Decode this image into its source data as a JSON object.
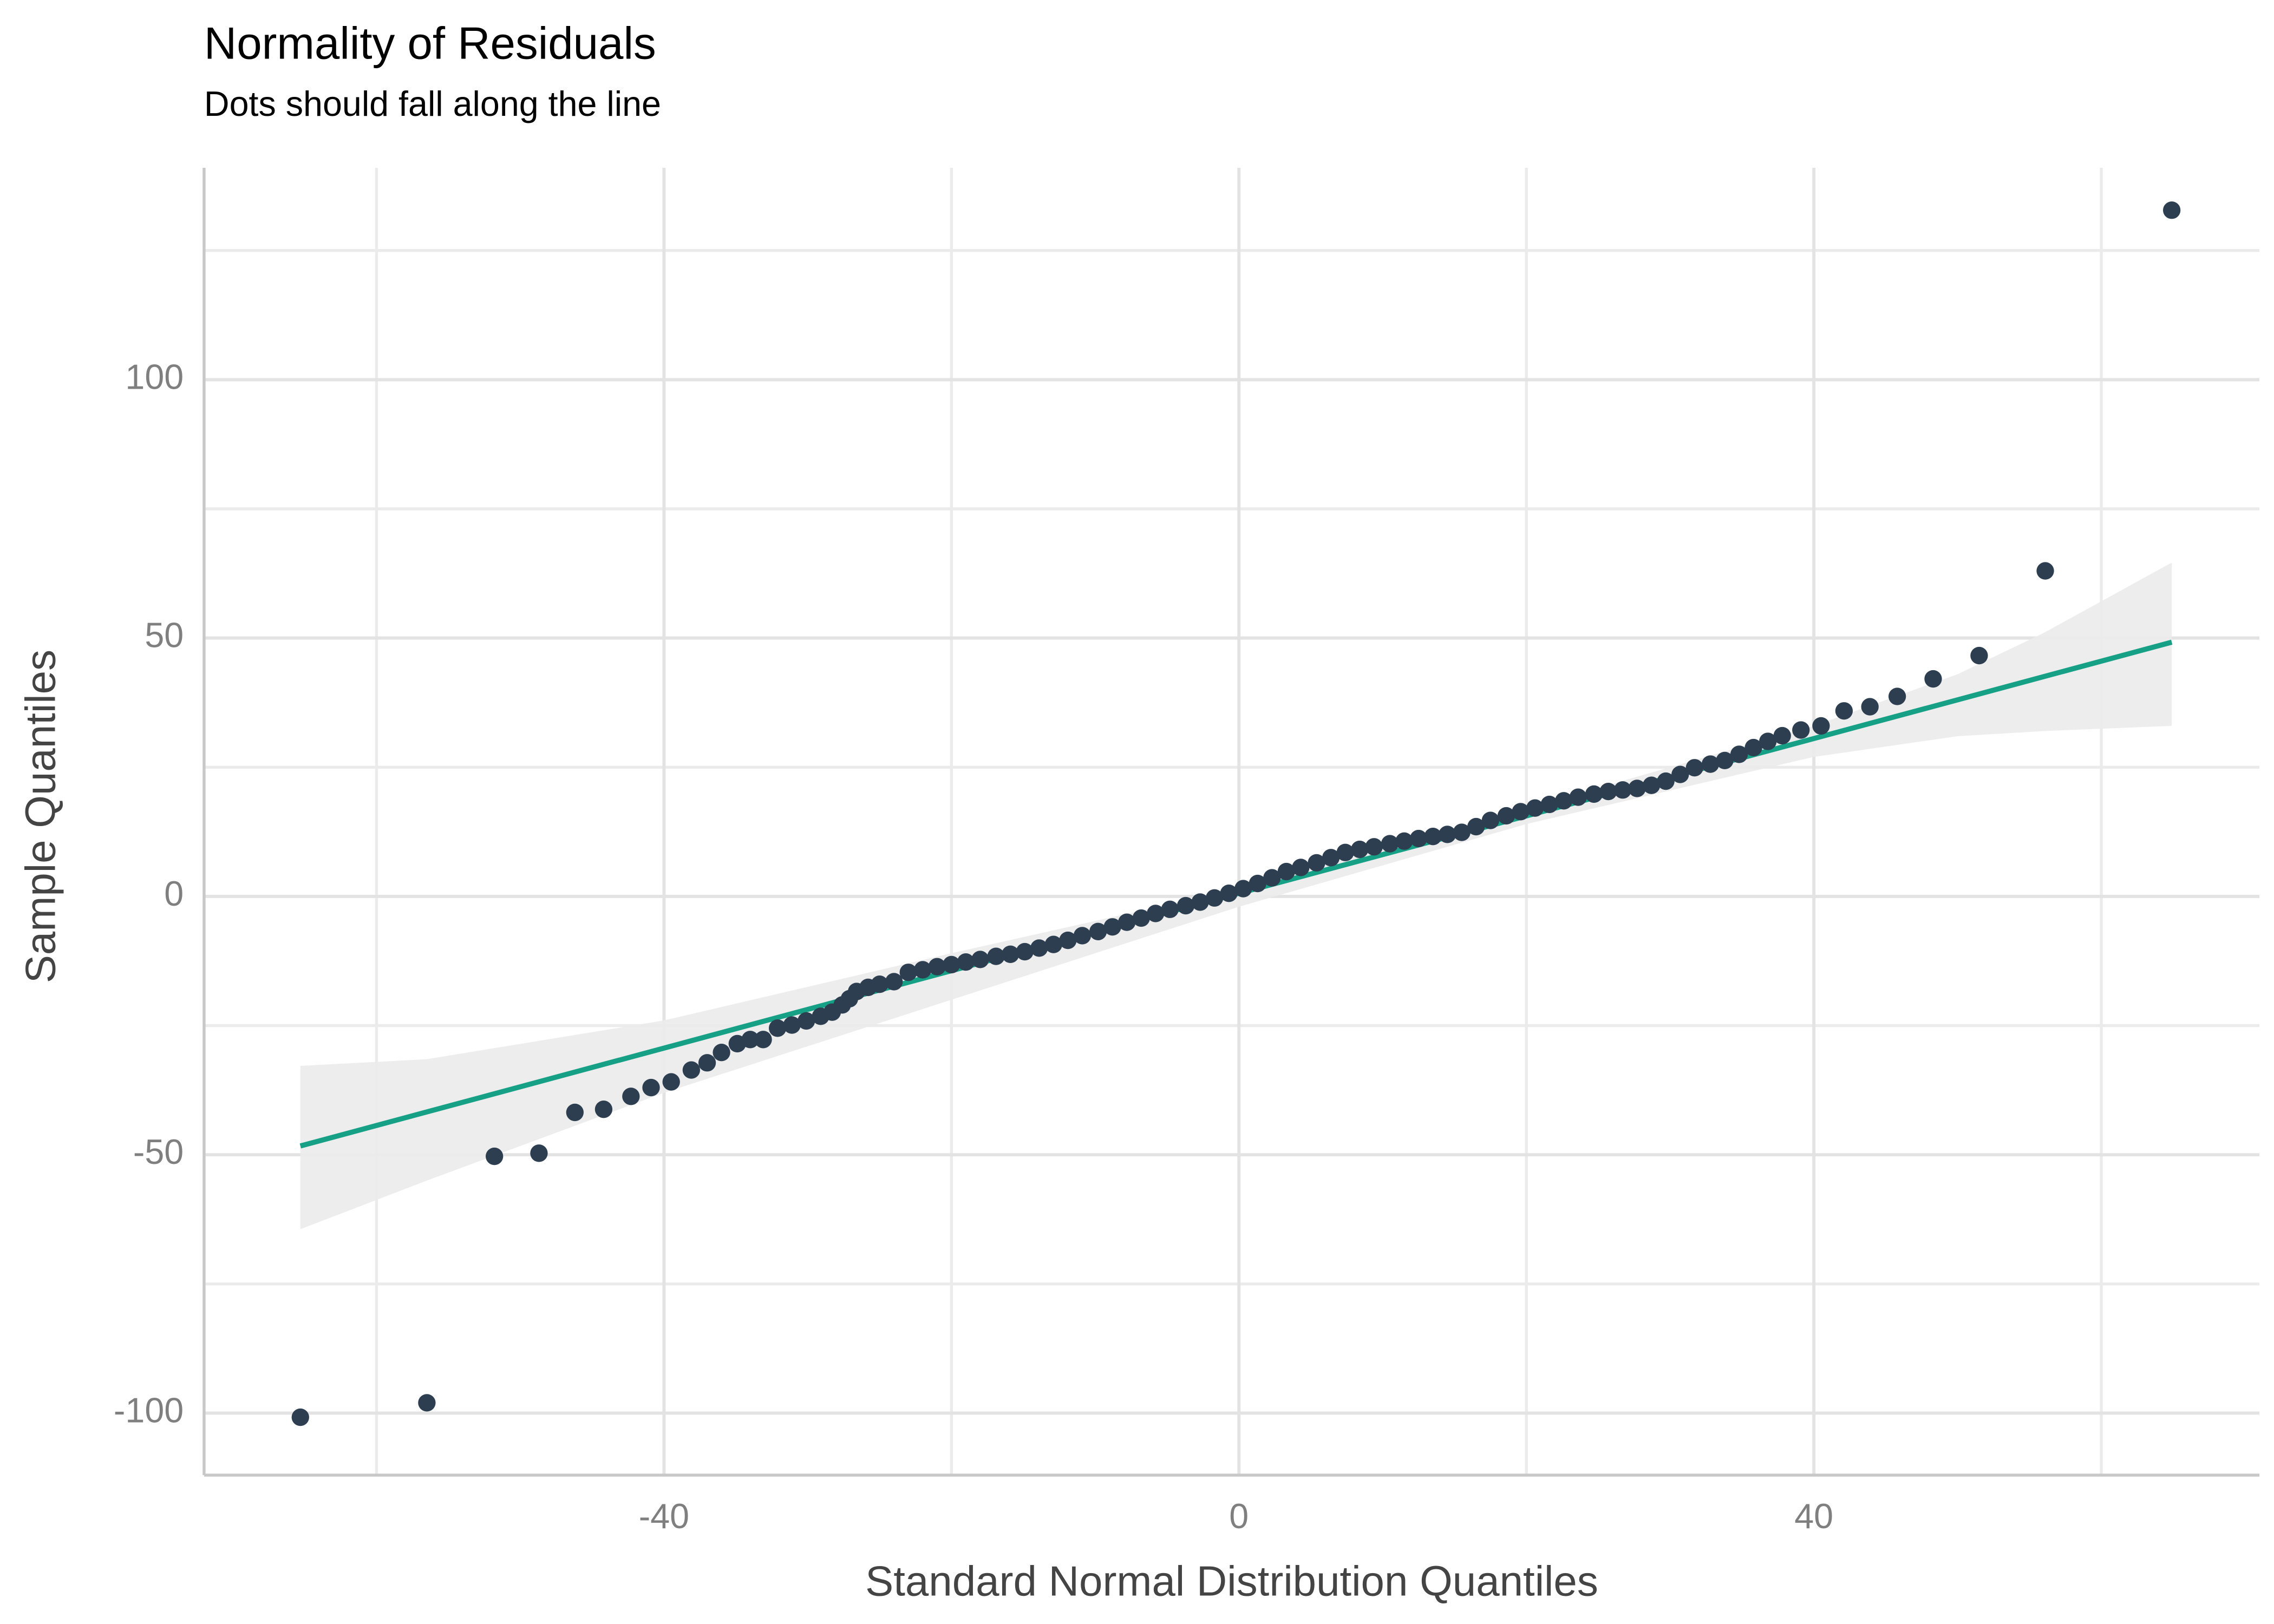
{
  "chart_data": {
    "type": "scatter",
    "title": "Normality of Residuals",
    "subtitle": "Dots should fall along the line",
    "xlabel": "Standard Normal Distribution Quantiles",
    "ylabel": "Sample Quantiles",
    "color": "#2c3e50",
    "x": [
      -65.3,
      -56.5,
      -51.8,
      -48.7,
      -46.2,
      -44.2,
      -42.3,
      -40.9,
      -39.5,
      -38.1,
      -37.0,
      -36.0,
      -34.9,
      -34.0,
      -33.1,
      -32.1,
      -31.1,
      -30.1,
      -29.1,
      -28.3,
      -27.6,
      -27.1,
      -26.6,
      -25.8,
      -25,
      -24,
      -23,
      -22,
      -21,
      -20,
      -19,
      -18,
      -16.9,
      -15.9,
      -14.9,
      -13.9,
      -12.9,
      -11.9,
      -10.9,
      -9.8,
      -8.8,
      -7.8,
      -6.8,
      -5.8,
      -4.8,
      -3.7,
      -2.7,
      -1.7,
      -0.7,
      0.3,
      1.3,
      2.3,
      3.3,
      4.3,
      5.4,
      6.4,
      7.4,
      8.4,
      9.4,
      10.5,
      11.5,
      12.5,
      13.5,
      14.5,
      15.5,
      16.5,
      17.5,
      18.6,
      19.6,
      20.6,
      21.6,
      22.6,
      23.6,
      24.7,
      25.7,
      26.7,
      27.7,
      28.7,
      29.7,
      30.7,
      31.7,
      32.8,
      33.8,
      34.8,
      35.8,
      36.8,
      37.8,
      39.1,
      40.5,
      42.1,
      43.9,
      45.8,
      48.3,
      51.5,
      56.1,
      64.9
    ],
    "y": [
      -100.8,
      -98,
      -50.3,
      -49.7,
      -41.8,
      -41.2,
      -38.7,
      -37,
      -35.9,
      -33.6,
      -32.2,
      -30.2,
      -28.5,
      -27.7,
      -27.7,
      -25.5,
      -24.9,
      -24.1,
      -23.2,
      -22.4,
      -21,
      -19.8,
      -18.4,
      -17.6,
      -17,
      -16.5,
      -14.7,
      -14.2,
      -13.6,
      -13.2,
      -12.7,
      -12.2,
      -11.6,
      -11.2,
      -10.7,
      -10,
      -9.3,
      -8.5,
      -7.6,
      -6.8,
      -5.9,
      -5,
      -4.2,
      -3.3,
      -2.5,
      -1.8,
      -1.1,
      -0.3,
      0.6,
      1.5,
      2.5,
      3.6,
      4.8,
      5.6,
      6.5,
      7.5,
      8.5,
      9.1,
      9.6,
      10.2,
      10.7,
      11.2,
      11.6,
      12,
      12.4,
      13.5,
      14.7,
      15.6,
      16.4,
      17.1,
      17.8,
      18.5,
      19.2,
      19.8,
      20.3,
      20.6,
      20.9,
      21.5,
      22.3,
      23.6,
      24.9,
      25.6,
      26.3,
      27.5,
      28.8,
      30,
      31.1,
      32.2,
      33,
      35.9,
      36.7,
      38.7,
      42.1,
      46.6,
      63,
      132.8
    ],
    "line": {
      "x": [
        -65.3,
        64.9
      ],
      "y": [
        -48.3,
        49.2
      ],
      "color": "#16a085"
    },
    "band": {
      "x": [
        -65.3,
        -56.5,
        -40,
        -20,
        0,
        20,
        40,
        50,
        56,
        64.9
      ],
      "lower": [
        -64.4,
        -55,
        -38,
        -20,
        -2,
        14,
        27,
        31,
        32,
        33
      ],
      "upper": [
        -32.8,
        -31.5,
        -24,
        -11,
        1.5,
        17,
        33,
        43,
        51,
        64.6
      ],
      "color": "#ebebeb"
    },
    "xlim": [
      -72,
      71
    ],
    "ylim": [
      -112,
      141
    ],
    "xticks": [
      -40,
      0,
      40
    ],
    "yticks": [
      -100,
      -50,
      0,
      50,
      100
    ],
    "x_minor_ticks": [
      -60,
      -20,
      20,
      60
    ],
    "y_minor_ticks": [
      -75,
      -25,
      25,
      75,
      125
    ],
    "grid": true
  }
}
